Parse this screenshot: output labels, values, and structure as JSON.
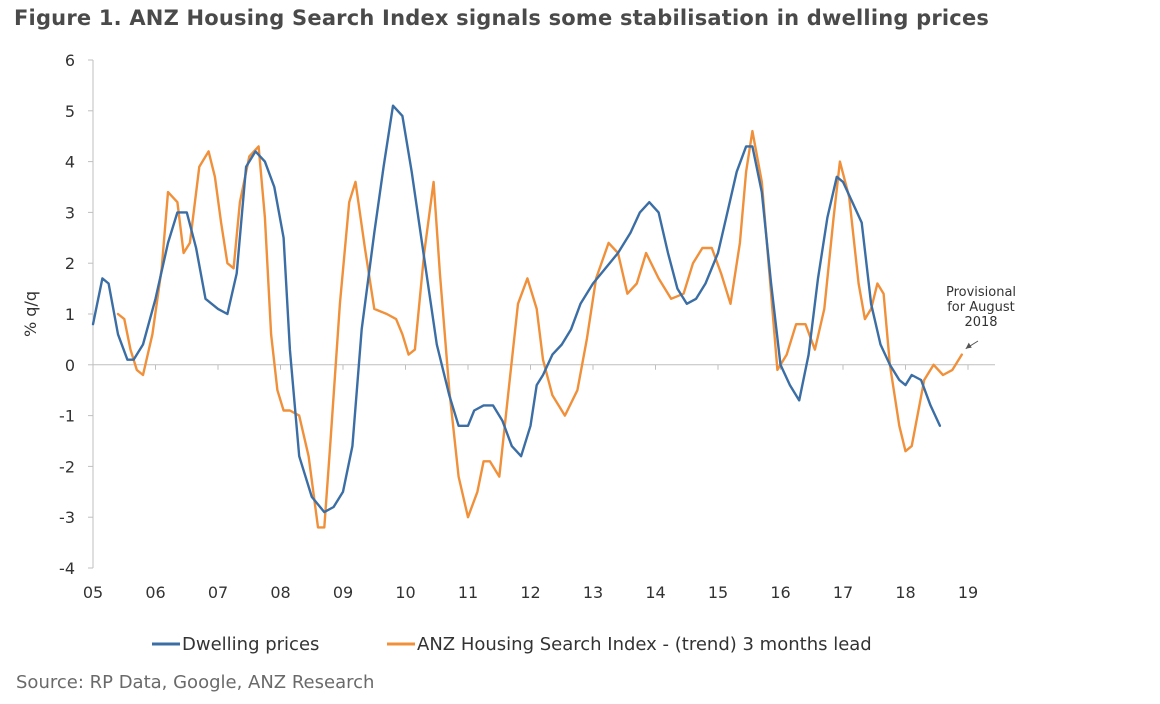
{
  "chart_data": {
    "type": "line",
    "title": "Figure 1. ANZ Housing Search Index signals some stabilisation in dwelling prices",
    "source": "Source: RP Data, Google, ANZ Research",
    "ylabel": "% q/q",
    "xlabel": "",
    "ylim": [
      -4,
      6
    ],
    "yticks": [
      -4,
      -3,
      -2,
      -1,
      0,
      1,
      2,
      3,
      4,
      5,
      6
    ],
    "xlim": [
      2005,
      2019.5
    ],
    "xtick_values": [
      2005,
      2006,
      2007,
      2008,
      2009,
      2010,
      2011,
      2012,
      2013,
      2014,
      2015,
      2016,
      2017,
      2018,
      2019
    ],
    "xtick_labels": [
      "05",
      "06",
      "07",
      "08",
      "09",
      "10",
      "11",
      "12",
      "13",
      "14",
      "15",
      "16",
      "17",
      "18",
      "19"
    ],
    "grid": false,
    "legend_position": "bottom",
    "annotation": {
      "lines": [
        "Provisional",
        "for August",
        "2018"
      ],
      "x": 2018.9,
      "y": 0.2
    },
    "series": [
      {
        "name": "Dwelling prices",
        "color": "#3b6ea5",
        "x": [
          2005.0,
          2005.15,
          2005.25,
          2005.4,
          2005.55,
          2005.65,
          2005.8,
          2006.0,
          2006.2,
          2006.35,
          2006.5,
          2006.65,
          2006.8,
          2007.0,
          2007.15,
          2007.3,
          2007.45,
          2007.6,
          2007.75,
          2007.9,
          2008.05,
          2008.15,
          2008.3,
          2008.5,
          2008.7,
          2008.85,
          2009.0,
          2009.15,
          2009.3,
          2009.5,
          2009.65,
          2009.8,
          2009.95,
          2010.1,
          2010.3,
          2010.5,
          2010.7,
          2010.85,
          2011.0,
          2011.1,
          2011.25,
          2011.4,
          2011.55,
          2011.7,
          2011.85,
          2012.0,
          2012.1,
          2012.2,
          2012.35,
          2012.5,
          2012.65,
          2012.8,
          2013.0,
          2013.2,
          2013.4,
          2013.6,
          2013.75,
          2013.9,
          2014.05,
          2014.2,
          2014.35,
          2014.5,
          2014.65,
          2014.8,
          2015.0,
          2015.15,
          2015.3,
          2015.45,
          2015.55,
          2015.7,
          2015.85,
          2016.0,
          2016.15,
          2016.3,
          2016.45,
          2016.6,
          2016.75,
          2016.9,
          2017.0,
          2017.15,
          2017.3,
          2017.45,
          2017.6,
          2017.75,
          2017.9,
          2018.0,
          2018.1,
          2018.25,
          2018.4,
          2018.55
        ],
        "values": [
          0.8,
          1.7,
          1.6,
          0.6,
          0.1,
          0.1,
          0.4,
          1.3,
          2.4,
          3.0,
          3.0,
          2.3,
          1.3,
          1.1,
          1.0,
          1.8,
          3.9,
          4.2,
          4.0,
          3.5,
          2.5,
          0.3,
          -1.8,
          -2.6,
          -2.9,
          -2.8,
          -2.5,
          -1.6,
          0.7,
          2.6,
          3.9,
          5.1,
          4.9,
          3.8,
          2.1,
          0.4,
          -0.6,
          -1.2,
          -1.2,
          -0.9,
          -0.8,
          -0.8,
          -1.1,
          -1.6,
          -1.8,
          -1.2,
          -0.4,
          -0.2,
          0.2,
          0.4,
          0.7,
          1.2,
          1.6,
          1.9,
          2.2,
          2.6,
          3.0,
          3.2,
          3.0,
          2.2,
          1.5,
          1.2,
          1.3,
          1.6,
          2.2,
          3.0,
          3.8,
          4.3,
          4.3,
          3.4,
          1.6,
          0.0,
          -0.4,
          -0.7,
          0.2,
          1.7,
          2.9,
          3.7,
          3.6,
          3.2,
          2.8,
          1.2,
          0.4,
          0.0,
          -0.3,
          -0.4,
          -0.2,
          -0.3,
          -0.8,
          -1.2
        ]
      },
      {
        "name": "ANZ Housing Search Index - (trend) 3 months lead",
        "color": "#f0903a",
        "x": [
          2005.4,
          2005.5,
          2005.6,
          2005.7,
          2005.8,
          2005.95,
          2006.1,
          2006.2,
          2006.35,
          2006.45,
          2006.55,
          2006.7,
          2006.85,
          2006.95,
          2007.05,
          2007.15,
          2007.25,
          2007.35,
          2007.5,
          2007.65,
          2007.75,
          2007.85,
          2007.95,
          2008.05,
          2008.15,
          2008.3,
          2008.45,
          2008.6,
          2008.7,
          2008.8,
          2008.95,
          2009.1,
          2009.2,
          2009.35,
          2009.5,
          2009.7,
          2009.85,
          2009.95,
          2010.05,
          2010.15,
          2010.3,
          2010.45,
          2010.55,
          2010.7,
          2010.85,
          2011.0,
          2011.15,
          2011.25,
          2011.35,
          2011.5,
          2011.65,
          2011.8,
          2011.95,
          2012.1,
          2012.2,
          2012.35,
          2012.55,
          2012.75,
          2012.9,
          2013.05,
          2013.25,
          2013.4,
          2013.55,
          2013.7,
          2013.85,
          2014.05,
          2014.25,
          2014.45,
          2014.6,
          2014.75,
          2014.9,
          2015.05,
          2015.2,
          2015.35,
          2015.45,
          2015.55,
          2015.7,
          2015.85,
          2015.95,
          2016.1,
          2016.25,
          2016.4,
          2016.55,
          2016.7,
          2016.85,
          2016.95,
          2017.1,
          2017.25,
          2017.35,
          2017.45,
          2017.55,
          2017.65,
          2017.75,
          2017.9,
          2018.0,
          2018.1,
          2018.3,
          2018.45,
          2018.6,
          2018.75,
          2018.9
        ],
        "values": [
          1.0,
          0.9,
          0.3,
          -0.1,
          -0.2,
          0.6,
          1.9,
          3.4,
          3.2,
          2.2,
          2.4,
          3.9,
          4.2,
          3.7,
          2.8,
          2.0,
          1.9,
          3.2,
          4.1,
          4.3,
          2.9,
          0.6,
          -0.5,
          -0.9,
          -0.9,
          -1.0,
          -1.8,
          -3.2,
          -3.2,
          -1.5,
          1.2,
          3.2,
          3.6,
          2.3,
          1.1,
          1.0,
          0.9,
          0.6,
          0.2,
          0.3,
          2.2,
          3.6,
          1.8,
          -0.5,
          -2.2,
          -3.0,
          -2.5,
          -1.9,
          -1.9,
          -2.2,
          -0.5,
          1.2,
          1.7,
          1.1,
          0.1,
          -0.6,
          -1.0,
          -0.5,
          0.5,
          1.7,
          2.4,
          2.2,
          1.4,
          1.6,
          2.2,
          1.7,
          1.3,
          1.4,
          2.0,
          2.3,
          2.3,
          1.8,
          1.2,
          2.4,
          3.8,
          4.6,
          3.6,
          1.4,
          -0.1,
          0.2,
          0.8,
          0.8,
          0.3,
          1.1,
          2.9,
          4.0,
          3.3,
          1.6,
          0.9,
          1.1,
          1.6,
          1.4,
          0.0,
          -1.2,
          -1.7,
          -1.6,
          -0.3,
          0.0,
          -0.2,
          -0.1,
          0.2
        ]
      }
    ]
  }
}
